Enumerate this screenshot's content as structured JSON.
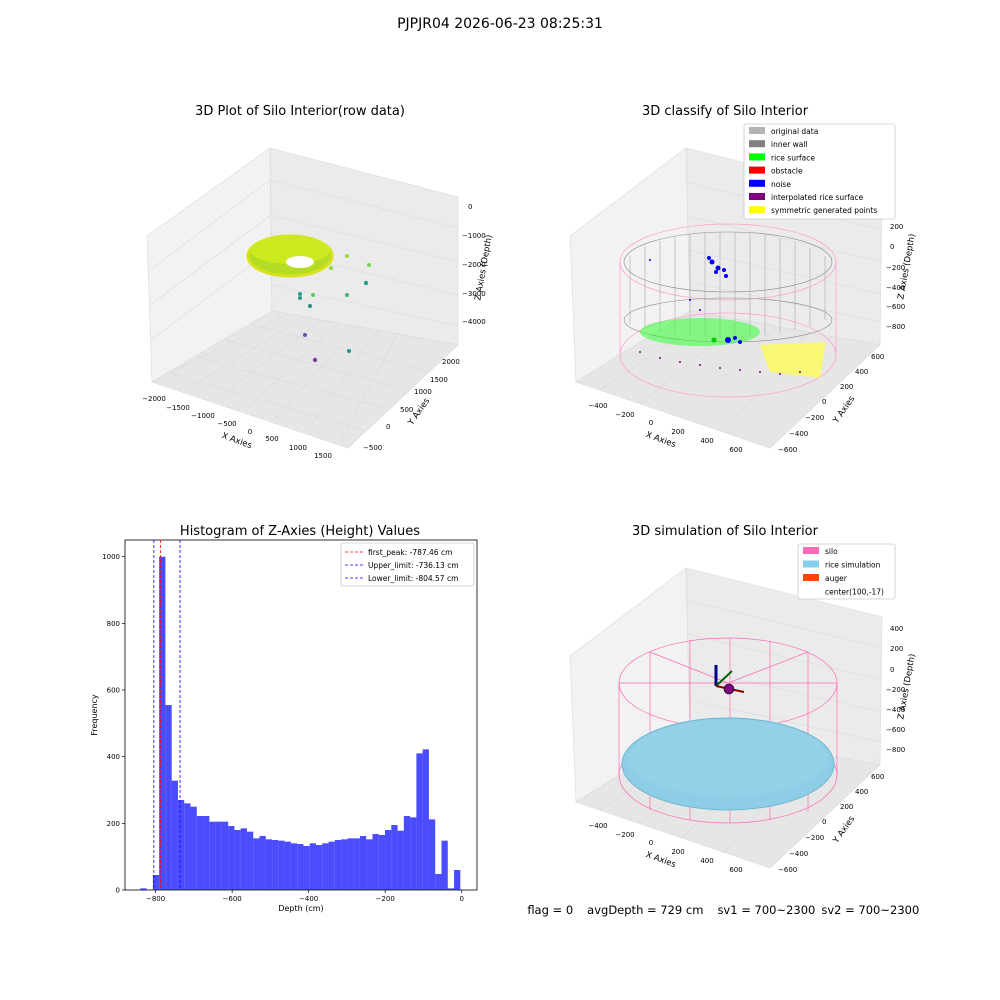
{
  "suptitle": "PJPJR04 2026-06-23 08:25:31",
  "panels": {
    "raw": {
      "title": "3D Plot of Silo Interior(row data)",
      "xlabel": "X Axies",
      "ylabel": "Y Axies",
      "zlabel": "Z Axies (Depth)",
      "xticks": [
        "−2000",
        "−1500",
        "−1000",
        "−500",
        "0",
        "500",
        "1000",
        "1500"
      ],
      "yticks": [
        "−500",
        "0",
        "500",
        "1000",
        "1500",
        "2000"
      ],
      "zticks": [
        "0",
        "−1000",
        "−2000",
        "−3000",
        "−4000"
      ]
    },
    "classify": {
      "title": "3D classify of Silo Interior",
      "xlabel": "X Axies",
      "ylabel": "Y Axies",
      "zlabel": "Z Axies (Depth)",
      "xticks": [
        "−400",
        "−200",
        "0",
        "200",
        "400",
        "600"
      ],
      "yticks": [
        "−600",
        "−400",
        "−200",
        "0",
        "200",
        "400",
        "600"
      ],
      "zticks": [
        "200",
        "0",
        "−200",
        "−400",
        "−600",
        "−800"
      ],
      "legend": [
        {
          "label": "original data",
          "color": "#b3b3b3"
        },
        {
          "label": "inner wall",
          "color": "#808080"
        },
        {
          "label": "rice surface",
          "color": "#00ff00"
        },
        {
          "label": "obstacle",
          "color": "#ff0000"
        },
        {
          "label": "noise",
          "color": "#0000ff"
        },
        {
          "label": "interpolated rice surface",
          "color": "#800080"
        },
        {
          "label": "symmetric generated points",
          "color": "#ffff00"
        }
      ]
    },
    "simulation": {
      "title": "3D simulation of Silo Interior",
      "xlabel": "X Axies",
      "ylabel": "Y Axies",
      "zlabel": "Z Axies (Depth)",
      "xticks": [
        "−400",
        "−200",
        "0",
        "200",
        "400",
        "600"
      ],
      "yticks": [
        "−600",
        "−400",
        "−200",
        "0",
        "200",
        "400",
        "600"
      ],
      "zticks": [
        "400",
        "200",
        "0",
        "−200",
        "−400",
        "−600",
        "−800"
      ],
      "legend": [
        {
          "label": "silo",
          "color": "#ff69b4"
        },
        {
          "label": "rice simulation",
          "color": "#87ceeb"
        },
        {
          "label": "auger",
          "color": "#ff4500"
        },
        {
          "label": "center(100,-17)",
          "color": ""
        }
      ]
    }
  },
  "status": {
    "flag": "flag = 0",
    "avg_depth": "avgDepth = 729 cm",
    "sv1": "sv1 = 700~2300",
    "sv2": "sv2 = 700~2300"
  },
  "chart_data": {
    "type": "bar",
    "title": "Histogram of Z-Axies (Height) Values",
    "xlabel": "Depth (cm)",
    "ylabel": "Frequency",
    "xlim": [
      -880,
      40
    ],
    "ylim": [
      0,
      1050
    ],
    "xticks": [
      -800,
      -600,
      -400,
      -200,
      0
    ],
    "xtick_labels": [
      "−800",
      "−600",
      "−400",
      "−200",
      "0"
    ],
    "yticks": [
      0,
      200,
      400,
      600,
      800,
      1000
    ],
    "bar_color": "#0000ff",
    "bar_width": 16.4,
    "bins_left": [
      -840,
      -823.6,
      -807.2,
      -790.8,
      -774.4,
      -758,
      -741.6,
      -725.2,
      -708.8,
      -692.4,
      -676,
      -659.6,
      -643.2,
      -626.8,
      -610.4,
      -594,
      -577.6,
      -561.2,
      -544.8,
      -528.4,
      -512,
      -495.6,
      -479.2,
      -462.8,
      -446.4,
      -430,
      -413.6,
      -397.2,
      -380.8,
      -364.4,
      -348,
      -331.6,
      -315.2,
      -298.8,
      -282.4,
      -266,
      -249.6,
      -233.2,
      -216.8,
      -200.4,
      -184,
      -167.6,
      -151.2,
      -134.8,
      -118.4,
      -102,
      -85.6,
      -69.2,
      -52.8,
      -36.4,
      -20,
      -3.6
    ],
    "values": [
      5,
      0,
      45,
      1000,
      555,
      328,
      270,
      260,
      250,
      222,
      222,
      205,
      205,
      205,
      192,
      180,
      185,
      175,
      155,
      162,
      152,
      150,
      148,
      145,
      140,
      138,
      132,
      140,
      135,
      140,
      145,
      150,
      152,
      155,
      155,
      162,
      152,
      168,
      165,
      180,
      195,
      178,
      222,
      218,
      410,
      422,
      212,
      48,
      148,
      5,
      60,
      0
    ],
    "vlines": [
      {
        "label": "first_peak: -787.46 cm",
        "x": -787.46,
        "color": "#ff0000"
      },
      {
        "label": "Upper_limit: -736.13 cm",
        "x": -736.13,
        "color": "#0000ff"
      },
      {
        "label": "Lower_limit: -804.57 cm",
        "x": -804.57,
        "color": "#0000ff"
      }
    ],
    "legend_position": "upper-right"
  }
}
